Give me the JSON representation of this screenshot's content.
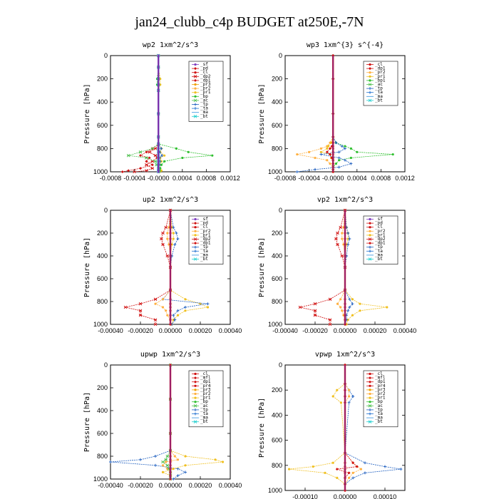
{
  "figure_title": "jan24_clubb_c4p  BUDGET at250E,-7N",
  "series_styles": {
    "_sf": {
      "color": "#8040c0",
      "marker": "circle"
    },
    "_pd": {
      "color": "#d01010",
      "marker": "diamond"
    },
    "_cl": {
      "color": "#d01010",
      "marker": "circle"
    },
    "_mfl": {
      "color": "#d01010",
      "marker": "diamond"
    },
    "_dp2": {
      "color": "#d01010",
      "marker": "star"
    },
    "_dp1": {
      "color": "#d01010",
      "marker": "diamond"
    },
    "_pr4": {
      "color": "#d01010",
      "marker": "circle"
    },
    "_pr3": {
      "color": "#f0a000",
      "marker": "circle"
    },
    "_pr2": {
      "color": "#ffb040",
      "marker": "circle"
    },
    "_pr1": {
      "color": "#f0c020",
      "marker": "circle"
    },
    "_bp": {
      "color": "#30c030",
      "marker": "circle"
    },
    "_bp1": {
      "color": "#30c030",
      "marker": "circle"
    },
    "_ac": {
      "color": "#50c050",
      "marker": "star"
    },
    "_tp": {
      "color": "#2060c0",
      "marker": "plus"
    },
    "_ta": {
      "color": "#2070d0",
      "marker": "plus"
    },
    "_ma": {
      "color": "#3090e0",
      "marker": "none"
    },
    "_bt": {
      "color": "#20d0d0",
      "marker": "star"
    }
  },
  "chart_data": [
    {
      "type": "line",
      "title": "wp2  1xm^2/s^3",
      "ylabel": "Pressure [hPa]",
      "xlim": [
        -0.0008,
        0.0012
      ],
      "ylim": [
        1000,
        0
      ],
      "xticks": [
        -0.0008,
        -0.0004,
        0.0,
        0.0004,
        0.0008,
        0.0012
      ],
      "xtick_labels": [
        "-0.0008",
        "-0.0004",
        "-0.0000",
        "0.0004",
        "0.0008",
        "0.0012"
      ],
      "yticks": [
        0,
        200,
        400,
        600,
        800,
        1000
      ],
      "y": [
        0,
        100,
        200,
        250,
        300,
        500,
        700,
        760,
        800,
        830,
        860,
        880,
        910,
        940,
        970,
        990,
        1000
      ],
      "legend": [
        "_sf",
        "_pd",
        "_cl",
        "_dp2",
        "_dp1",
        "_pr3",
        "_pr2",
        "_pr1",
        "_bp",
        "_ac",
        "_tp",
        "_ta",
        "_ma",
        "_bt"
      ],
      "series": [
        {
          "name": "_pd",
          "values": [
            0,
            0,
            0,
            0,
            0,
            0,
            0,
            0,
            -0.0001,
            -0.0002,
            -0.0003,
            -0.00015,
            -0.0002,
            -0.0001,
            -0.0003,
            -0.0005,
            -0.0006
          ]
        },
        {
          "name": "_dp2",
          "values": [
            0,
            0,
            0,
            0,
            0,
            0,
            0,
            0,
            -5e-05,
            -0.00015,
            -5e-05,
            -2e-05,
            -0.0001,
            -0.0002,
            -0.0001,
            -0.0002,
            -0.0004
          ]
        },
        {
          "name": "_pr1",
          "values": [
            0,
            0,
            3e-05,
            3e-05,
            0,
            0,
            0,
            0,
            5e-05,
            3e-05,
            0.0001,
            3e-05,
            5e-05,
            2e-05,
            3e-05,
            5e-05,
            2e-05
          ]
        },
        {
          "name": "_bp",
          "values": [
            0,
            0,
            -2e-05,
            -2e-05,
            0,
            0,
            0,
            0,
            0.0003,
            0.0005,
            0.0009,
            0.0004,
            0.0001,
            5e-05,
            3e-05,
            2e-05,
            1e-05
          ]
        },
        {
          "name": "_ac",
          "values": [
            0,
            0,
            0,
            0,
            0,
            0,
            0,
            0,
            -0.0001,
            -0.0003,
            -0.0005,
            -0.0002,
            -5e-05,
            -3e-05,
            0,
            0,
            0
          ]
        },
        {
          "name": "_tp",
          "values": [
            0,
            0,
            0,
            0,
            0,
            0,
            0,
            0,
            5e-05,
            2e-05,
            6e-05,
            2e-05,
            3e-05,
            2e-05,
            0,
            0,
            0
          ]
        },
        {
          "name": "_bt",
          "values": [
            0,
            0,
            0,
            0,
            0,
            0,
            0,
            0,
            0,
            0,
            0,
            0,
            0,
            0,
            0,
            0,
            0
          ]
        },
        {
          "name": "_sf",
          "values": [
            0,
            0,
            0,
            0,
            0,
            0,
            0,
            0,
            0,
            0,
            0,
            0,
            0,
            0,
            0,
            0,
            0
          ]
        }
      ]
    },
    {
      "type": "line",
      "title": "wp3  1xm^{3} s^{-4}",
      "ylabel": "Pressure [hPa]",
      "xlim": [
        -0.0008,
        0.0012
      ],
      "ylim": [
        1000,
        0
      ],
      "xticks": [
        -0.0008,
        -0.0004,
        0.0,
        0.0004,
        0.0008,
        0.0012
      ],
      "xtick_labels": [
        "-0.0008",
        "-0.0004",
        "-0.0000",
        "0.0004",
        "0.0008",
        "0.0012"
      ],
      "yticks": [
        0,
        200,
        400,
        600,
        800,
        1000
      ],
      "y": [
        0,
        200,
        500,
        700,
        750,
        780,
        800,
        830,
        850,
        880,
        900,
        930,
        960,
        980,
        1000
      ],
      "legend": [
        "_cl",
        "_dp1",
        "_pr2",
        "_pr1",
        "_bp1",
        "_ac",
        "_tp",
        "_ta",
        "_ma",
        "_bt"
      ],
      "series": [
        {
          "name": "_pr2",
          "values": [
            0,
            0,
            0,
            0,
            -5e-05,
            -0.0001,
            -0.0002,
            -0.0004,
            -0.0006,
            -0.0003,
            -0.0001,
            -5e-05,
            0,
            0,
            0
          ]
        },
        {
          "name": "_pr1",
          "values": [
            0,
            0,
            0,
            0,
            -3e-05,
            -8e-05,
            -0.0001,
            -0.0002,
            -5e-05,
            -3e-05,
            0,
            0,
            0,
            0,
            0
          ]
        },
        {
          "name": "_bp1",
          "values": [
            0,
            0,
            0,
            0,
            5e-05,
            0.0002,
            0.0003,
            0.0004,
            0.001,
            0.0003,
            0.0001,
            5e-05,
            0,
            0,
            0
          ]
        },
        {
          "name": "_tp",
          "values": [
            0,
            0,
            0,
            0,
            5e-05,
            0.00015,
            0.0002,
            0.0001,
            -0.0002,
            0.0001,
            0.0002,
            0.0003,
            0.0001,
            -0.0003,
            -0.0006
          ]
        },
        {
          "name": "_dp1",
          "values": [
            0,
            0,
            0,
            0,
            0,
            -2e-05,
            -5e-05,
            -0.0001,
            -5e-05,
            -2e-05,
            0,
            0,
            0,
            0,
            0
          ]
        },
        {
          "name": "_cl",
          "values": [
            0,
            0,
            0,
            0,
            0,
            0,
            0,
            0,
            0,
            0,
            0,
            0,
            0,
            0,
            0
          ]
        }
      ]
    },
    {
      "type": "line",
      "title": "up2  1xm^2/s^3",
      "ylabel": "Pressure [hPa]",
      "xlim": [
        -0.0004,
        0.0004
      ],
      "ylim": [
        1000,
        0
      ],
      "xticks": [
        -0.0004,
        -0.0002,
        0.0,
        0.0002,
        0.0004
      ],
      "xtick_labels": [
        "-0.00040",
        "-0.00020",
        "0.00000",
        "0.00020",
        "0.00040"
      ],
      "yticks": [
        0,
        200,
        400,
        600,
        800,
        1000
      ],
      "y": [
        0,
        150,
        200,
        250,
        300,
        400,
        500,
        700,
        780,
        820,
        850,
        880,
        920,
        960,
        1000
      ],
      "legend": [
        "_sf",
        "_pd",
        "_cl",
        "_pr2",
        "_pr1",
        "_dp2",
        "_dp1",
        "_tp",
        "_ta",
        "_ma",
        "_bt"
      ],
      "series": [
        {
          "name": "_dp2",
          "values": [
            0,
            -3e-05,
            -5e-05,
            -6e-05,
            -5e-05,
            -2e-05,
            0,
            0,
            -0.0001,
            -0.0002,
            -0.0003,
            -0.0002,
            -0.0002,
            -0.0001,
            -0.0001
          ]
        },
        {
          "name": "_pr1",
          "values": [
            0,
            1e-05,
            2e-05,
            2e-05,
            1e-05,
            0,
            0,
            0,
            0.0001,
            0.0002,
            0.00025,
            0.0001,
            5e-05,
            2e-05,
            1e-05
          ]
        },
        {
          "name": "_tp",
          "values": [
            0,
            2e-05,
            4e-05,
            5e-05,
            3e-05,
            1e-05,
            0,
            0,
            -5e-05,
            0.00025,
            0.0001,
            5e-05,
            2e-05,
            3e-05,
            1e-05
          ]
        },
        {
          "name": "_pr2",
          "values": [
            0,
            -1e-05,
            -2e-05,
            -2e-05,
            -1e-05,
            0,
            0,
            0,
            -5e-05,
            -0.0001,
            -5e-05,
            -3e-05,
            -2e-05,
            0,
            0
          ]
        },
        {
          "name": "_cl",
          "values": [
            0,
            0,
            0,
            0,
            0,
            0,
            0,
            0,
            0,
            0,
            0,
            0,
            0,
            0,
            0
          ]
        }
      ]
    },
    {
      "type": "line",
      "title": "vp2  1xm^2/s^3",
      "ylabel": "Pressure [hPa]",
      "xlim": [
        -0.0004,
        0.0004
      ],
      "ylim": [
        1000,
        0
      ],
      "xticks": [
        -0.0004,
        -0.0002,
        0.0,
        0.0002,
        0.0004
      ],
      "xtick_labels": [
        "-0.00040",
        "-0.00020",
        "0.00000",
        "0.00020",
        "0.00040"
      ],
      "yticks": [
        0,
        200,
        400,
        600,
        800,
        1000
      ],
      "y": [
        0,
        150,
        200,
        250,
        300,
        400,
        500,
        700,
        780,
        820,
        850,
        880,
        920,
        960,
        1000
      ],
      "legend": [
        "_sf",
        "_pd",
        "_cl",
        "_pr2",
        "_pr1",
        "_dp2",
        "_dp1",
        "_tp",
        "_ta",
        "_ma",
        "_bt"
      ],
      "series": [
        {
          "name": "_dp2",
          "values": [
            0,
            -3e-05,
            -5e-05,
            -6e-05,
            -5e-05,
            -2e-05,
            0,
            0,
            -0.0001,
            -0.0002,
            -0.0003,
            -0.0002,
            -0.0002,
            -0.0001,
            -0.0001
          ]
        },
        {
          "name": "_pr1",
          "values": [
            0,
            1e-05,
            2e-05,
            2e-05,
            1e-05,
            0,
            0,
            0,
            5e-05,
            0.0001,
            0.00028,
            0.0001,
            5e-05,
            2e-05,
            1e-05
          ]
        },
        {
          "name": "_tp",
          "values": [
            0,
            1e-05,
            2e-05,
            3e-05,
            2e-05,
            1e-05,
            0,
            0,
            3e-05,
            5e-05,
            3e-05,
            2e-05,
            1e-05,
            1e-05,
            0
          ]
        },
        {
          "name": "_pr2",
          "values": [
            0,
            -1e-05,
            -2e-05,
            -2e-05,
            -1e-05,
            0,
            0,
            0,
            -3e-05,
            -5e-05,
            -3e-05,
            -2e-05,
            -1e-05,
            0,
            0
          ]
        },
        {
          "name": "_cl",
          "values": [
            0,
            0,
            0,
            0,
            0,
            0,
            0,
            0,
            0,
            0,
            0,
            0,
            0,
            0,
            0
          ]
        }
      ]
    },
    {
      "type": "line",
      "title": "upwp  1xm^2/s^3",
      "ylabel": "Pressure [hPa]",
      "xlim": [
        -0.0004,
        0.0004
      ],
      "ylim": [
        1000,
        0
      ],
      "xticks": [
        -0.0004,
        -0.0002,
        0.0,
        0.0002,
        0.0004
      ],
      "xtick_labels": [
        "-0.00040",
        "-0.00020",
        "0.00000",
        "0.00020",
        "0.00040"
      ],
      "yticks": [
        0,
        200,
        400,
        600,
        800,
        1000
      ],
      "y": [
        0,
        300,
        600,
        750,
        800,
        830,
        850,
        880,
        910,
        940,
        970,
        1000
      ],
      "legend": [
        "_cl",
        "_mfl",
        "_dp1",
        "_pr4",
        "_pr3",
        "_pr2",
        "_pr1",
        "_bp",
        "_ac",
        "_tp",
        "_ta",
        "_ma",
        "_bt"
      ],
      "series": [
        {
          "name": "_tp",
          "values": [
            0,
            0,
            0,
            0,
            -0.0001,
            -0.0002,
            -0.0004,
            -0.0001,
            5e-05,
            0.0001,
            5e-05,
            2e-05
          ]
        },
        {
          "name": "_pr1",
          "values": [
            0,
            0,
            0,
            0,
            0.0001,
            0.0003,
            0.00035,
            0.0001,
            2e-05,
            -5e-05,
            0,
            0
          ]
        },
        {
          "name": "_pr2",
          "values": [
            0,
            0,
            0,
            0,
            3e-05,
            5e-05,
            -3e-05,
            -5e-05,
            -2e-05,
            0,
            0,
            0
          ]
        },
        {
          "name": "_ac",
          "values": [
            0,
            0,
            0,
            0,
            -2e-05,
            -3e-05,
            -5e-05,
            -2e-05,
            -1e-05,
            0,
            0,
            0
          ]
        },
        {
          "name": "_cl",
          "values": [
            0,
            0,
            0,
            0,
            0,
            0,
            0,
            0,
            0,
            0,
            0,
            0
          ]
        }
      ]
    },
    {
      "type": "line",
      "title": "vpwp  1xm^2/s^3",
      "ylabel": "Pressure [hPa]",
      "xlim": [
        -0.00015,
        0.00015
      ],
      "ylim": [
        1000,
        0
      ],
      "xticks": [
        -0.0001,
        0.0,
        0.0001
      ],
      "xtick_labels": [
        "-0.00010",
        "0.00000",
        "0.00010"
      ],
      "yticks": [
        0,
        200,
        400,
        600,
        800,
        1000
      ],
      "y": [
        0,
        150,
        200,
        250,
        300,
        700,
        780,
        810,
        830,
        860,
        900,
        950,
        1000
      ],
      "legend": [
        "_cl",
        "_mfl",
        "_dp1",
        "_pr4",
        "_pr3",
        "_pr2",
        "_pr1",
        "_bp",
        "_ac",
        "_tp",
        "_ta",
        "_ma",
        "_bt"
      ],
      "series": [
        {
          "name": "_pr1",
          "values": [
            0,
            0,
            -2e-05,
            -3e-05,
            -1e-05,
            0,
            -3e-05,
            -8e-05,
            -0.00014,
            -5e-05,
            -2e-05,
            0,
            0
          ]
        },
        {
          "name": "_tp",
          "values": [
            0,
            0,
            1e-05,
            2e-05,
            1e-05,
            0,
            5e-05,
            0.0001,
            0.00014,
            5e-05,
            2e-05,
            0,
            0
          ]
        },
        {
          "name": "_pr2",
          "values": [
            0,
            0,
            1e-05,
            1e-05,
            0,
            0,
            2e-05,
            3e-05,
            4e-05,
            2e-05,
            1e-05,
            0,
            0
          ]
        },
        {
          "name": "_dp1",
          "values": [
            0,
            0,
            0,
            0,
            0,
            0,
            2e-05,
            3e-05,
            -2e-05,
            1e-05,
            0,
            0,
            0
          ]
        },
        {
          "name": "_cl",
          "values": [
            0,
            0,
            0,
            0,
            0,
            0,
            0,
            0,
            0,
            0,
            0,
            0,
            0
          ]
        }
      ]
    }
  ]
}
